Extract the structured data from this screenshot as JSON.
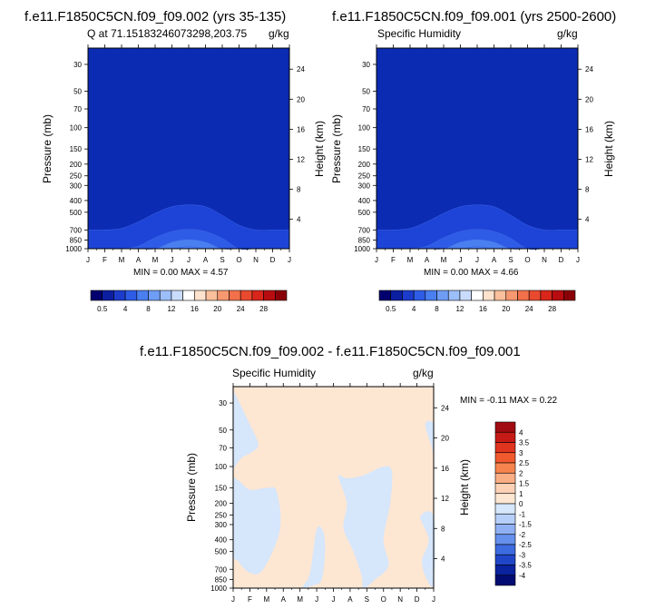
{
  "colors": {
    "level_0_1": "#0c2bb3",
    "level_1_2": "#1d44d6",
    "level_2_3": "#2f5ce6",
    "level_3_4": "#4a7ff0",
    "diff_pos": "#fde7d3",
    "diff_neg": "#d6e6fb"
  },
  "panels": [
    {
      "title": "f.e11.F1850C5CN.f09_f09.002 (yrs 35-135)",
      "subtitle_left": "Q at 71.15183246073298,203.75",
      "subtitle_right": "g/kg",
      "y_label": "Pressure (mb)",
      "y2_label": "Height (km)",
      "stats": "MIN =   0.00 MAX =   4.57"
    },
    {
      "title": "f.e11.F1850C5CN.f09_f09.001 (yrs 2500-2600)",
      "subtitle_left": "Specific Humidity",
      "subtitle_right": "g/kg",
      "y_label": "Pressure (mb)",
      "y2_label": "Height (km)",
      "stats": "MIN =   0.00 MAX =   4.66"
    },
    {
      "title": "f.e11.F1850C5CN.f09_f09.002 - f.e11.F1850C5CN.f09_f09.001",
      "subtitle_left": "Specific Humidity",
      "subtitle_right": "g/kg",
      "y_label": "Pressure (mb)",
      "y2_label": "Height (km)",
      "stats": "MIN =  -0.11 MAX =   0.22"
    }
  ],
  "chart_data": [
    {
      "type": "contour",
      "title": "f.e11.F1850C5CN.f09_f09.002 (yrs 35-135)",
      "x_label": "",
      "x": [
        "J",
        "F",
        "M",
        "A",
        "M",
        "J",
        "J",
        "A",
        "S",
        "O",
        "N",
        "D",
        "J"
      ],
      "y_label": "Pressure (mb)",
      "y_ticks": [
        30,
        50,
        70,
        100,
        150,
        200,
        250,
        300,
        400,
        500,
        700,
        850,
        1000
      ],
      "y_range": [
        1000,
        22
      ],
      "y2_label": "Height (km)",
      "y2_ticks": [
        4,
        8,
        12,
        16,
        20,
        24
      ],
      "variable": "Q at 71.15183246073298,203.75",
      "units": "g/kg",
      "min": 0.0,
      "max": 4.57,
      "contour_boundaries": [
        {
          "level": 0.5,
          "top_pressure_by_month": [
            700,
            700,
            680,
            600,
            510,
            450,
            435,
            450,
            530,
            640,
            700,
            700,
            700
          ]
        },
        {
          "level": 1.5,
          "top_pressure_by_month": [
            1000,
            1000,
            1000,
            950,
            810,
            720,
            690,
            720,
            820,
            1000,
            1000,
            1000,
            1000
          ]
        },
        {
          "level": 2.5,
          "top_pressure_by_month": [
            1000,
            1000,
            1000,
            1000,
            1000,
            880,
            840,
            880,
            1000,
            1000,
            1000,
            1000,
            1000
          ]
        },
        {
          "level": 3.5,
          "top_pressure_by_month": [
            1000,
            1000,
            1000,
            1000,
            1000,
            1000,
            960,
            1000,
            1000,
            1000,
            1000,
            1000,
            1000
          ]
        }
      ]
    },
    {
      "type": "contour",
      "title": "f.e11.F1850C5CN.f09_f09.001 (yrs 2500-2600)",
      "x": [
        "J",
        "F",
        "M",
        "A",
        "M",
        "J",
        "J",
        "A",
        "S",
        "O",
        "N",
        "D",
        "J"
      ],
      "y_label": "Pressure (mb)",
      "y_ticks": [
        30,
        50,
        70,
        100,
        150,
        200,
        250,
        300,
        400,
        500,
        700,
        850,
        1000
      ],
      "y_range": [
        1000,
        22
      ],
      "y2_label": "Height (km)",
      "y2_ticks": [
        4,
        8,
        12,
        16,
        20,
        24
      ],
      "variable": "Specific Humidity",
      "units": "g/kg",
      "min": 0.0,
      "max": 4.66,
      "contour_boundaries": [
        {
          "level": 0.5,
          "top_pressure_by_month": [
            700,
            700,
            680,
            600,
            510,
            450,
            435,
            450,
            530,
            640,
            700,
            700,
            700
          ]
        },
        {
          "level": 1.5,
          "top_pressure_by_month": [
            1000,
            1000,
            1000,
            950,
            810,
            720,
            690,
            720,
            820,
            1000,
            1000,
            1000,
            1000
          ]
        },
        {
          "level": 2.5,
          "top_pressure_by_month": [
            1000,
            1000,
            1000,
            1000,
            1000,
            880,
            840,
            880,
            1000,
            1000,
            1000,
            1000,
            1000
          ]
        },
        {
          "level": 3.5,
          "top_pressure_by_month": [
            1000,
            1000,
            1000,
            1000,
            1000,
            1000,
            960,
            1000,
            1000,
            1000,
            1000,
            1000,
            1000
          ]
        }
      ]
    },
    {
      "type": "contour",
      "title": "f.e11.F1850C5CN.f09_f09.002 - f.e11.F1850C5CN.f09_f09.001",
      "x": [
        "J",
        "F",
        "M",
        "A",
        "M",
        "J",
        "J",
        "A",
        "S",
        "O",
        "N",
        "D",
        "J"
      ],
      "y_label": "Pressure (mb)",
      "y_ticks": [
        30,
        50,
        70,
        100,
        150,
        200,
        250,
        300,
        400,
        500,
        700,
        850,
        1000
      ],
      "y_range": [
        1000,
        22
      ],
      "y2_label": "Height (km)",
      "y2_ticks": [
        4,
        8,
        12,
        16,
        20,
        24
      ],
      "variable": "Specific Humidity",
      "units": "g/kg",
      "min": -0.11,
      "max": 0.22,
      "background_interval": [
        0,
        1
      ],
      "negative_regions": [
        {
          "name": "upper-left",
          "x_month": [
            0,
            0.1,
            1.0,
            1.5,
            1.2,
            0.5,
            0.1,
            0
          ],
          "p_mb": [
            25,
            25,
            45,
            65,
            75,
            85,
            100,
            100
          ]
        },
        {
          "name": "mid-left",
          "x_month": [
            0,
            0.3,
            1.0,
            2.0,
            2.6,
            2.8,
            1.8,
            1.0,
            0.3,
            0
          ],
          "p_mb": [
            140,
            130,
            155,
            150,
            160,
            330,
            700,
            750,
            600,
            500
          ]
        },
        {
          "name": "lower-center",
          "x_month": [
            4.2,
            4.6,
            5.0,
            5.4,
            5.5,
            5.3,
            4.8,
            4.2
          ],
          "p_mb": [
            950,
            750,
            330,
            345,
            500,
            850,
            950,
            1000
          ]
        },
        {
          "name": "center-right",
          "x_month": [
            6.3,
            6.8,
            7.8,
            9.0,
            9.5,
            9.4,
            9.0,
            9.3,
            8.5,
            7.8,
            7.7,
            7.2,
            6.6,
            6.8
          ],
          "p_mb": [
            120,
            125,
            118,
            100,
            110,
            200,
            400,
            650,
            850,
            1000,
            800,
            500,
            320,
            200
          ]
        },
        {
          "name": "right-edge",
          "x_month": [
            11.2,
            12.0,
            12.0,
            11.6,
            11.3,
            11.7
          ],
          "p_mb": [
            260,
            260,
            900,
            850,
            600,
            400
          ]
        },
        {
          "name": "right-top",
          "x_month": [
            11.5,
            12.0,
            12.0,
            11.9
          ],
          "p_mb": [
            45,
            45,
            85,
            70
          ]
        }
      ]
    }
  ],
  "colorbar_top": {
    "labels": [
      "0.5",
      "4",
      "8",
      "12",
      "16",
      "20",
      "24",
      "28"
    ],
    "colors": [
      "#02006e",
      "#0c1fa0",
      "#1d3ccc",
      "#2f5ce6",
      "#4a7ff0",
      "#6f9df5",
      "#9cbef9",
      "#c9dcfc",
      "#ffffff",
      "#fde2cd",
      "#fbbf9b",
      "#f79870",
      "#f2704a",
      "#e94a2f",
      "#d8261b",
      "#b80d10",
      "#8a0008"
    ]
  },
  "colorbar_diff": {
    "labels": [
      "4",
      "3.5",
      "3",
      "2.5",
      "2",
      "1.5",
      "1",
      "0",
      "-1",
      "-1.5",
      "-2",
      "-2.5",
      "-3",
      "-3.5",
      "-4"
    ],
    "colors": [
      "#a00c10",
      "#c61a16",
      "#e0341f",
      "#f15a2e",
      "#f7834f",
      "#fbad84",
      "#fdd1b6",
      "#fde7d3",
      "#d6e6fb",
      "#b6cff8",
      "#8fb1f4",
      "#6590ec",
      "#3d6be0",
      "#2046c8",
      "#0a239f",
      "#020c72"
    ]
  }
}
